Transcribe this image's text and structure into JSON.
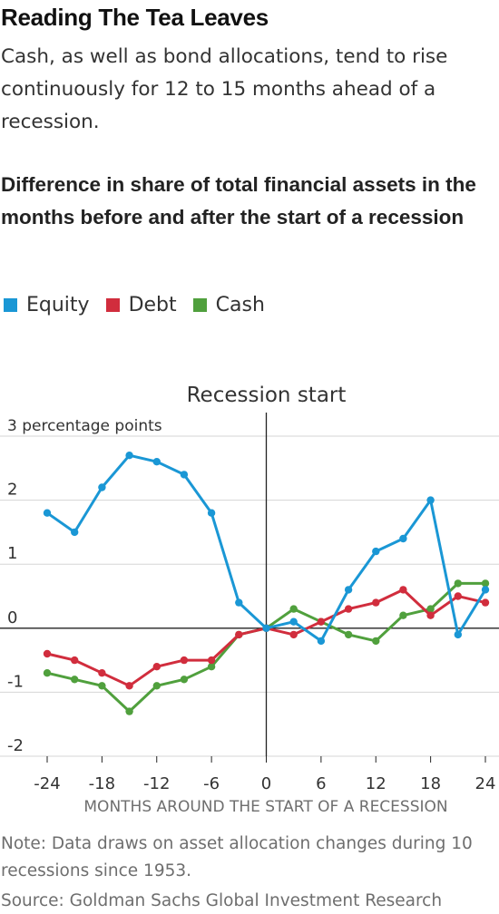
{
  "title": "Reading The Tea Leaves",
  "subtitle": "Cash, as well as bond allocations, tend to rise continuously for 12 to 15 months ahead of a recession.",
  "note": "Note: Data draws on asset allocation changes during 10 recessions since 1953.",
  "source": "Source: Goldman Sachs Global Investment Research",
  "colors": {
    "equity": "#1a97d5",
    "debt": "#d12d3d",
    "cash": "#50a03d",
    "axis": "#222222",
    "grid": "#d5d5d5",
    "tick_text": "#333333"
  },
  "chart_data": {
    "type": "line",
    "title": "Difference in share of total financial assets in the months before and after the start of a recession",
    "xlabel": "MONTHS AROUND THE START OF A RECESSION",
    "ylabel": "3 percentage points",
    "annotation": "Recession start",
    "x": [
      -24,
      -21,
      -18,
      -15,
      -12,
      -9,
      -6,
      -3,
      0,
      3,
      6,
      9,
      12,
      15,
      18,
      21,
      24
    ],
    "xlim": [
      -24,
      24
    ],
    "ylim": [
      -2,
      3
    ],
    "x_ticks": [
      -24,
      -18,
      -12,
      -6,
      0,
      6,
      12,
      18,
      24
    ],
    "x_tick_labels": [
      "-24",
      "-18",
      "-12",
      "-6",
      "0",
      "6",
      "12",
      "18",
      "24"
    ],
    "y_ticks": [
      3,
      2,
      1,
      0,
      -1,
      -2
    ],
    "y_tick_labels": [
      "3 percentage points",
      "2",
      "1",
      "0",
      "-1",
      "-2"
    ],
    "grid": true,
    "legend_position": "top-left",
    "series": [
      {
        "name": "Equity",
        "color": "#1a97d5",
        "values": [
          1.8,
          1.5,
          2.2,
          2.7,
          2.6,
          2.4,
          1.8,
          0.4,
          0.0,
          0.1,
          -0.2,
          0.6,
          1.2,
          1.4,
          2.0,
          -0.1,
          0.6
        ]
      },
      {
        "name": "Debt",
        "color": "#d12d3d",
        "values": [
          -0.4,
          -0.5,
          -0.7,
          -0.9,
          -0.6,
          -0.5,
          -0.5,
          -0.1,
          0.0,
          -0.1,
          0.1,
          0.3,
          0.4,
          0.6,
          0.2,
          0.5,
          0.4
        ]
      },
      {
        "name": "Cash",
        "color": "#50a03d",
        "values": [
          -0.7,
          -0.8,
          -0.9,
          -1.3,
          -0.9,
          -0.8,
          -0.6,
          -0.1,
          0.0,
          0.3,
          0.1,
          -0.1,
          -0.2,
          0.2,
          0.3,
          0.7,
          0.7
        ]
      }
    ]
  }
}
